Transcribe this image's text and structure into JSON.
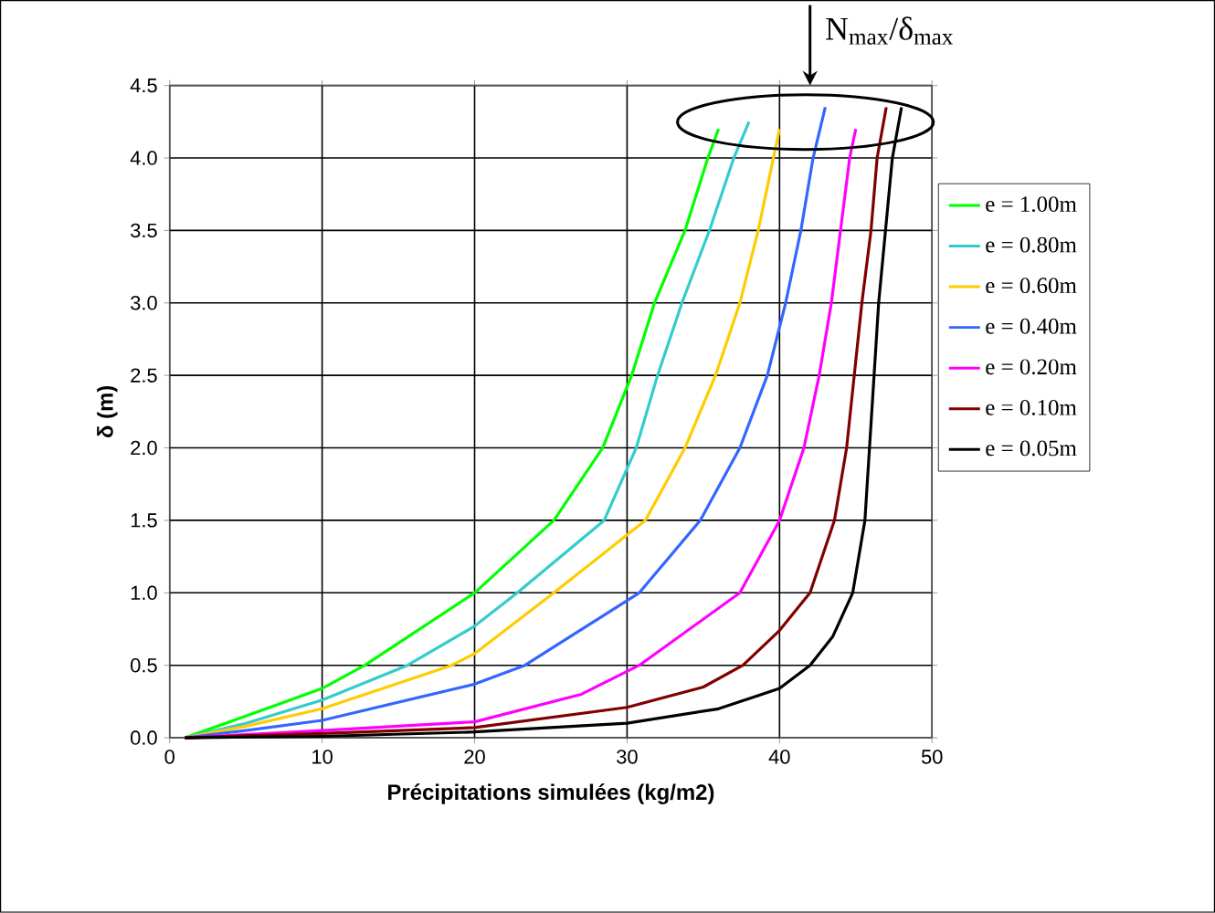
{
  "chart_data": {
    "type": "line",
    "xlabel": "Précipitations simulées (kg/m2)",
    "ylabel": "δ (m)",
    "xlim": [
      0,
      50
    ],
    "ylim": [
      0,
      4.5
    ],
    "xticks": [
      0,
      10,
      20,
      30,
      40,
      50
    ],
    "yticks": [
      {
        "value": 0,
        "label": "0.0"
      },
      {
        "value": 0.5,
        "label": "0.5"
      },
      {
        "value": 1,
        "label": "1.0"
      },
      {
        "value": 1.5,
        "label": "1.5"
      },
      {
        "value": 2,
        "label": "2.0"
      },
      {
        "value": 2.5,
        "label": "2.5"
      },
      {
        "value": 3,
        "label": "3.0"
      },
      {
        "value": 3.5,
        "label": "3.5"
      },
      {
        "value": 4,
        "label": "4.0"
      },
      {
        "value": 4.5,
        "label": "4.5"
      }
    ],
    "grid": true,
    "legend": "right",
    "marker": "none",
    "line_style": "solid",
    "annotations": [
      "N$_{max}$/δ$_{max}$"
    ],
    "series": [
      {
        "name": "e = 1.00m",
        "color": "#00ff00",
        "x": [
          1,
          5,
          10,
          12.8,
          20,
          25.2,
          28.4,
          30.3,
          31.8,
          33.8,
          35.3,
          36
        ],
        "values": [
          0,
          0.15,
          0.34,
          0.5,
          1.0,
          1.5,
          2.0,
          2.5,
          3.0,
          3.5,
          4.0,
          4.2
        ]
      },
      {
        "name": "e = 0.80m",
        "color": "#33cccc",
        "x": [
          1,
          5,
          10,
          15.6,
          20,
          22.8,
          28.5,
          30.6,
          32,
          33.6,
          35.4,
          37,
          38
        ],
        "values": [
          0,
          0.1,
          0.26,
          0.5,
          0.77,
          1.0,
          1.5,
          2.0,
          2.5,
          3.0,
          3.5,
          4.0,
          4.25
        ]
      },
      {
        "name": "e = 0.60m",
        "color": "#ffcc00",
        "x": [
          1,
          5,
          10,
          18.5,
          20,
          25.2,
          31.2,
          33.8,
          35.8,
          37.4,
          38.6,
          39.6,
          40
        ],
        "values": [
          0,
          0.08,
          0.2,
          0.5,
          0.58,
          1.0,
          1.5,
          2.0,
          2.5,
          3.0,
          3.5,
          4.0,
          4.2
        ]
      },
      {
        "name": "e = 0.40m",
        "color": "#3366ff",
        "x": [
          1,
          5,
          10,
          20,
          23.3,
          30.8,
          34.8,
          37.4,
          39.2,
          40.4,
          41.4,
          42.2,
          43
        ],
        "values": [
          0,
          0.05,
          0.12,
          0.37,
          0.5,
          1.0,
          1.5,
          2.0,
          2.5,
          3.0,
          3.5,
          4.0,
          4.35
        ]
      },
      {
        "name": "e = 0.20m",
        "color": "#ff00ff",
        "x": [
          1,
          10,
          20,
          27,
          30.8,
          37.4,
          40,
          41.6,
          42.6,
          43.4,
          44,
          44.6,
          45
        ],
        "values": [
          0,
          0.05,
          0.11,
          0.3,
          0.5,
          1.0,
          1.5,
          2.0,
          2.5,
          3.0,
          3.5,
          4.0,
          4.2
        ]
      },
      {
        "name": "e = 0.10m",
        "color": "#800000",
        "x": [
          1,
          10,
          20,
          30,
          35,
          37.6,
          40,
          42,
          43.6,
          44.4,
          44.9,
          45.4,
          46,
          46.4,
          47
        ],
        "values": [
          0,
          0.03,
          0.07,
          0.21,
          0.35,
          0.5,
          0.74,
          1.0,
          1.5,
          2.0,
          2.5,
          3.0,
          3.5,
          4.0,
          4.35
        ]
      },
      {
        "name": "e = 0.05m",
        "color": "#000000",
        "x": [
          1,
          10,
          20,
          30,
          36,
          40,
          42,
          43.5,
          44.8,
          45.6,
          45.9,
          46.5,
          47.4,
          48
        ],
        "values": [
          0,
          0.01,
          0.04,
          0.1,
          0.2,
          0.34,
          0.5,
          0.7,
          1.0,
          1.5,
          2.0,
          3.0,
          4.0,
          4.35
        ]
      }
    ]
  }
}
